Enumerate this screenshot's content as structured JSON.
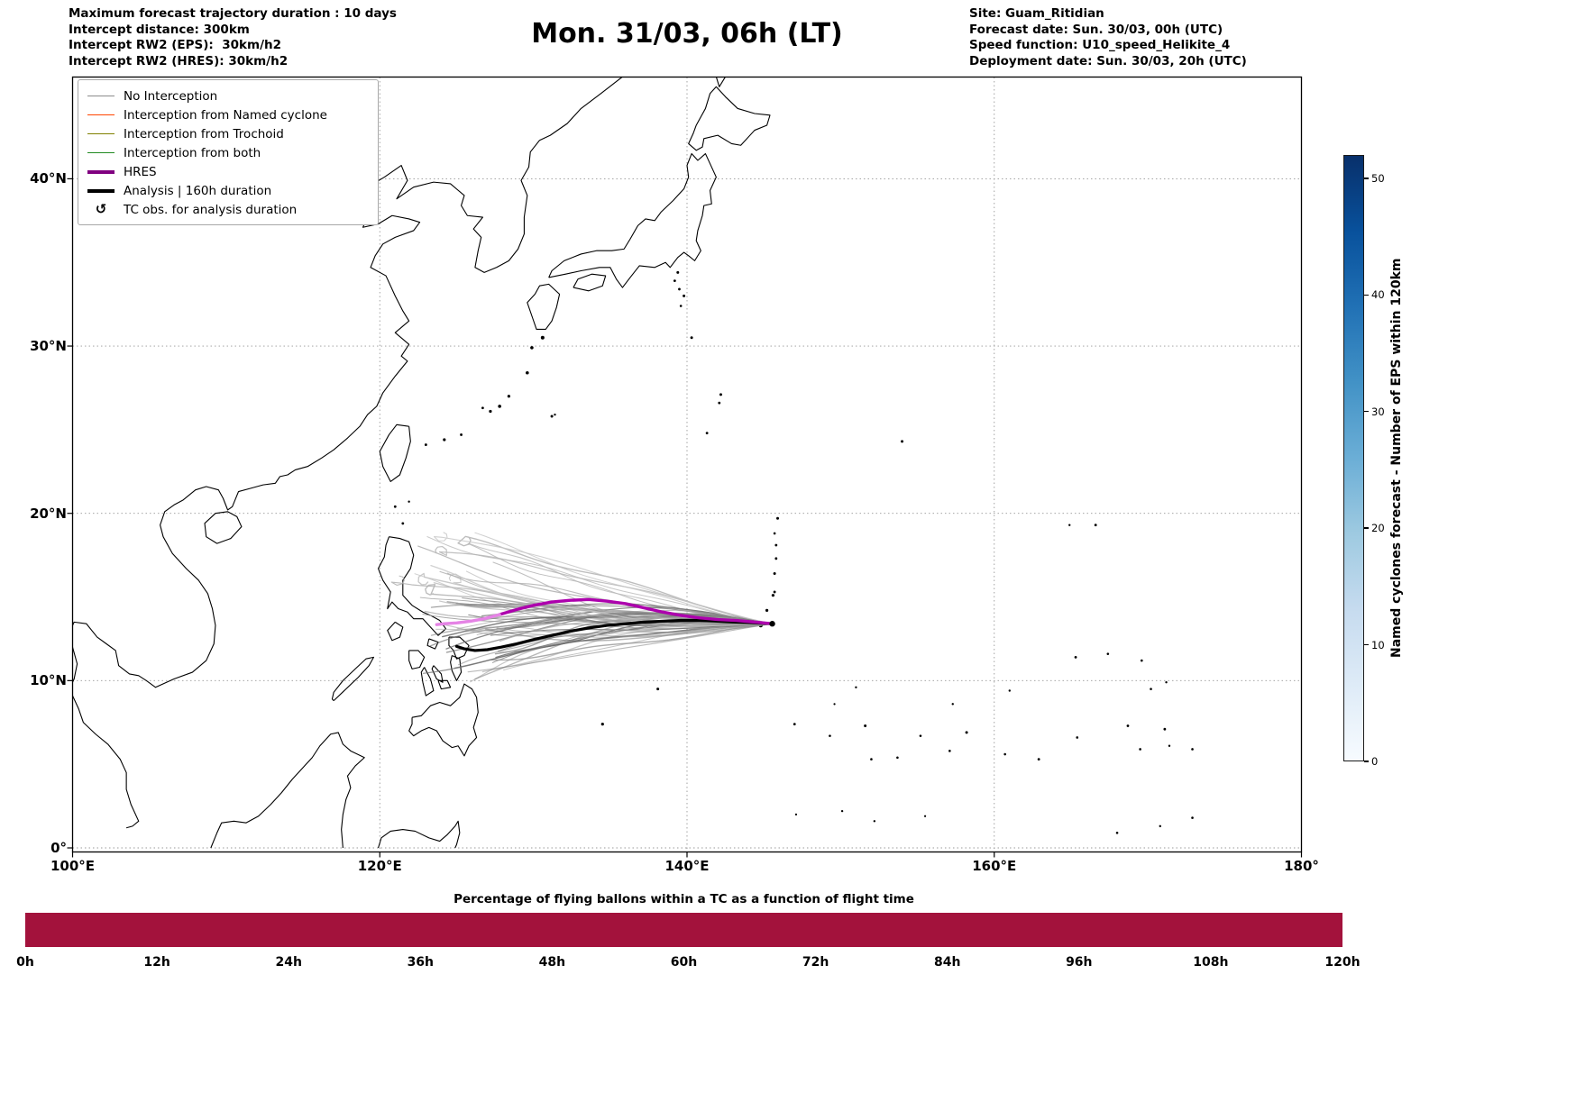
{
  "header": {
    "left_lines": [
      "Maximum forecast trajectory duration : 10 days",
      "Intercept distance: 300km",
      "Intercept RW2 (EPS):  30km/h2",
      "Intercept RW2 (HRES): 30km/h2"
    ],
    "title": "Mon. 31/03, 06h (LT)",
    "right_lines": [
      "Site: Guam_Ritidian",
      "Forecast date: Sun. 30/03, 00h (UTC)",
      "Speed function: U10_speed_Helikite_4",
      "Deployment date: Sun. 30/03, 20h (UTC)"
    ]
  },
  "map": {
    "x_tick_labels": [
      "100°E",
      "120°E",
      "140°E",
      "160°E",
      "180°"
    ],
    "x_tick_lons": [
      100,
      120,
      140,
      160,
      180
    ],
    "y_tick_labels": [
      "0°",
      "10°N",
      "20°N",
      "30°N",
      "40°N"
    ],
    "y_tick_lats": [
      0,
      10,
      20,
      30,
      40
    ],
    "legend": {
      "items": [
        {
          "label": "No Interception",
          "color": "#8c8c8c",
          "width": 1.4
        },
        {
          "label": "Interception from Named cyclone",
          "color": "#ff4500",
          "width": 1.6
        },
        {
          "label": "Interception from Trochoid",
          "color": "#808000",
          "width": 1.6
        },
        {
          "label": "Interception from both",
          "color": "#228b22",
          "width": 1.6
        },
        {
          "label": "HRES",
          "color": "#800080",
          "width": 4
        },
        {
          "label": "Analysis | 160h duration",
          "color": "#000000",
          "width": 4
        }
      ],
      "tc_obs": {
        "symbol": "↺",
        "label": "TC obs. for analysis duration"
      }
    }
  },
  "colorbar": {
    "title": "Named cyclones forecast - Number of EPS within 120km",
    "ticks": [
      0,
      10,
      20,
      30,
      40,
      50
    ],
    "min": 0,
    "max": 52,
    "colors": [
      "#f7fbff",
      "#deebf7",
      "#c6dbef",
      "#9ecae1",
      "#6baed6",
      "#4292c6",
      "#2171b5",
      "#08519c",
      "#08306b"
    ]
  },
  "bottom_chart": {
    "title": "Percentage of flying ballons within a TC as a function of flight time",
    "tick_labels": [
      "0h",
      "12h",
      "24h",
      "36h",
      "48h",
      "60h",
      "72h",
      "84h",
      "96h",
      "108h",
      "120h"
    ],
    "tick_hours": [
      0,
      12,
      24,
      36,
      48,
      60,
      72,
      84,
      96,
      108,
      120
    ],
    "bar_color": "#a3123c",
    "percent": 100
  },
  "chart_data": [
    {
      "type": "line",
      "title": "Mon. 31/03, 06h (LT)",
      "projection": "lon/lat map, western North Pacific",
      "lon_range": [
        100,
        180
      ],
      "lat_range": [
        0,
        46.1
      ],
      "deployment_point": [
        145.55,
        13.4
      ],
      "series": [
        {
          "name": "HRES",
          "color": "#ad00ad",
          "points": [
            [
              145.55,
              13.4
            ],
            [
              144.4,
              13.5
            ],
            [
              143.2,
              13.6
            ],
            [
              142.0,
              13.65
            ],
            [
              140.8,
              13.75
            ],
            [
              139.6,
              13.9
            ],
            [
              138.4,
              14.1
            ],
            [
              137.2,
              14.35
            ],
            [
              136.0,
              14.6
            ],
            [
              134.8,
              14.75
            ],
            [
              133.6,
              14.85
            ],
            [
              132.4,
              14.8
            ],
            [
              131.2,
              14.7
            ],
            [
              130.0,
              14.5
            ],
            [
              128.9,
              14.25
            ],
            [
              127.8,
              13.95
            ]
          ]
        },
        {
          "name": "HRES west segment",
          "color": "#e583e5",
          "points": [
            [
              127.8,
              13.95
            ],
            [
              126.8,
              13.7
            ],
            [
              125.9,
              13.55
            ],
            [
              125.0,
              13.45
            ],
            [
              124.2,
              13.4
            ],
            [
              123.7,
              13.35
            ]
          ]
        },
        {
          "name": "Analysis | 160h duration",
          "color": "#000000",
          "points": [
            [
              145.55,
              13.4
            ],
            [
              144.4,
              13.45
            ],
            [
              143.2,
              13.5
            ],
            [
              142.0,
              13.55
            ],
            [
              140.8,
              13.6
            ],
            [
              139.6,
              13.6
            ],
            [
              138.4,
              13.55
            ],
            [
              137.2,
              13.5
            ],
            [
              136.0,
              13.4
            ],
            [
              134.8,
              13.3
            ],
            [
              133.6,
              13.15
            ],
            [
              132.4,
              12.95
            ],
            [
              131.2,
              12.7
            ],
            [
              130.0,
              12.45
            ],
            [
              128.9,
              12.2
            ],
            [
              127.9,
              12.0
            ],
            [
              127.0,
              11.85
            ],
            [
              126.2,
              11.8
            ],
            [
              125.5,
              11.9
            ],
            [
              125.0,
              12.05
            ]
          ]
        },
        {
          "name": "EPS ensemble (No Interception)",
          "color": "gray shades",
          "member_count": 62,
          "start": [
            145.55,
            13.4
          ],
          "end_lon_range": [
            121.0,
            128.5
          ],
          "end_lat_range": [
            9.8,
            18.7
          ]
        }
      ]
    },
    {
      "type": "area",
      "title": "Percentage of flying ballons within a TC as a function of flight time",
      "x_hours": [
        0,
        120
      ],
      "values_percent": [
        100,
        100
      ],
      "ylim": [
        0,
        100
      ],
      "xlim": [
        0,
        120
      ]
    }
  ]
}
